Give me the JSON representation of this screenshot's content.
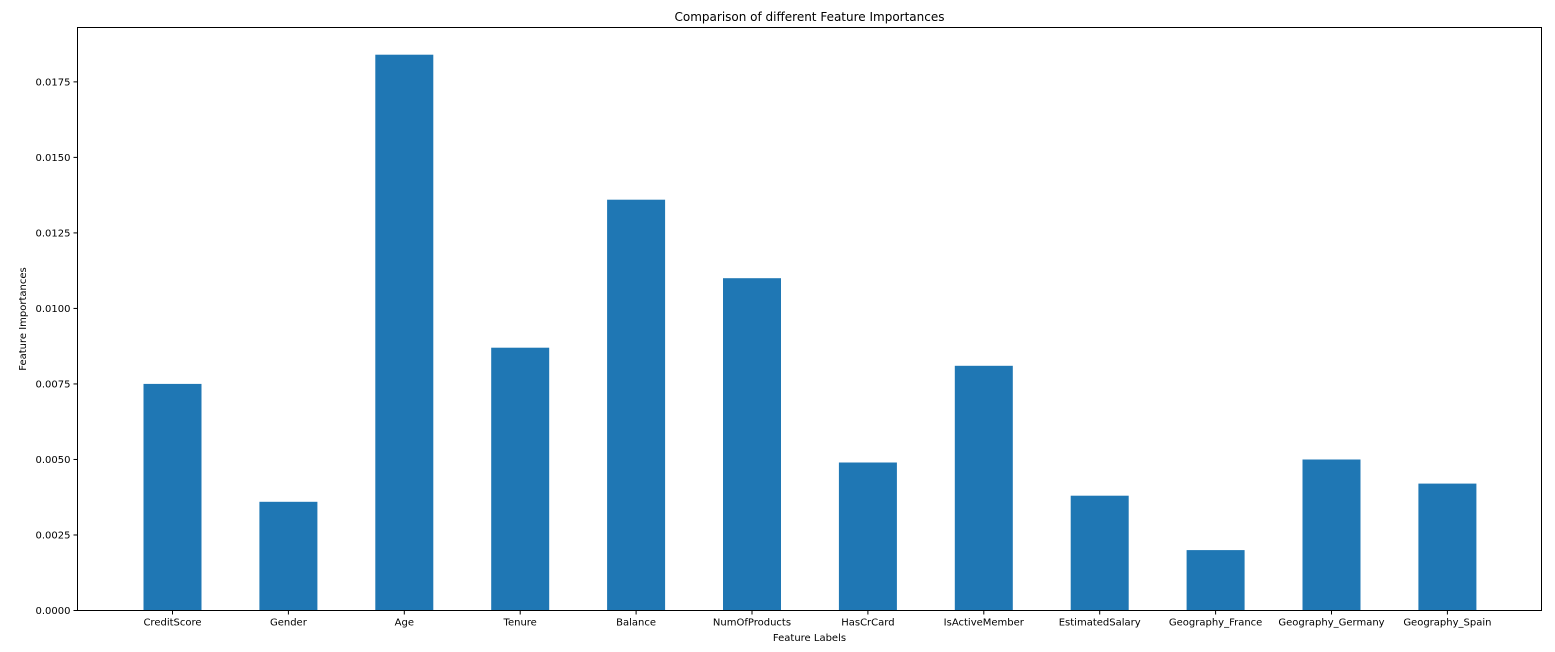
{
  "chart_data": {
    "type": "bar",
    "title": "Comparison of different Feature Importances",
    "xlabel": "Feature Labels",
    "ylabel": "Feature Importances",
    "categories": [
      "CreditScore",
      "Gender",
      "Age",
      "Tenure",
      "Balance",
      "NumOfProducts",
      "HasCrCard",
      "IsActiveMember",
      "EstimatedSalary",
      "Geography_France",
      "Geography_Germany",
      "Geography_Spain"
    ],
    "values": [
      0.0075,
      0.0036,
      0.0184,
      0.0087,
      0.0136,
      0.011,
      0.0049,
      0.0081,
      0.0038,
      0.002,
      0.005,
      0.0042
    ],
    "ylim": [
      0,
      0.0193
    ],
    "yticks": [
      0,
      0.0025,
      0.005,
      0.0075,
      0.01,
      0.0125,
      0.015,
      0.0175
    ],
    "ytick_labels": [
      "0.0000",
      "0.0025",
      "0.0050",
      "0.0075",
      "0.0100",
      "0.0125",
      "0.0150",
      "0.0175"
    ],
    "bar_color": "#1f77b4",
    "grid": false,
    "legend": false
  }
}
